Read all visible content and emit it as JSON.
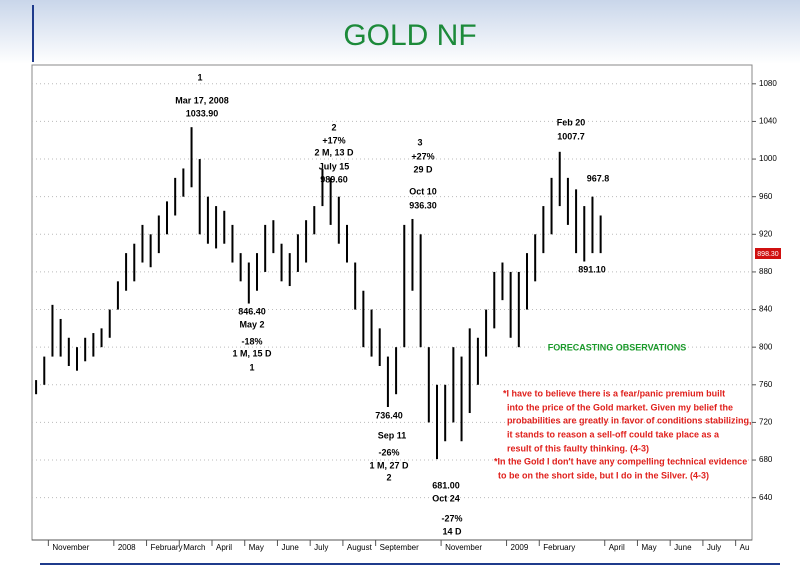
{
  "page_title": "GOLD NF",
  "chart_data": {
    "type": "range-bar",
    "color": "#000000",
    "categories": [
      null,
      null,
      "November",
      null,
      null,
      null,
      null,
      null,
      null,
      null,
      "2008",
      null,
      null,
      null,
      "February",
      null,
      null,
      null,
      "March",
      null,
      null,
      null,
      "April",
      null,
      null,
      null,
      "May",
      null,
      null,
      null,
      "June",
      null,
      null,
      null,
      "July",
      null,
      null,
      null,
      "August",
      null,
      null,
      null,
      "September",
      null,
      null,
      null,
      null,
      null,
      null,
      null,
      "November",
      null,
      null,
      null,
      null,
      null,
      null,
      null,
      "2009",
      null,
      null,
      null,
      "February",
      null,
      null,
      null,
      null,
      null,
      null,
      null,
      "April",
      null,
      null,
      null,
      "May",
      null,
      null,
      null,
      "June",
      null,
      null,
      null,
      "July",
      null,
      null,
      null,
      "Au",
      null
    ],
    "high": [
      765,
      790,
      845,
      830,
      810,
      800,
      810,
      815,
      820,
      840,
      870,
      900,
      910,
      930,
      920,
      940,
      955,
      980,
      990,
      1033.9,
      1000,
      960,
      950,
      945,
      930,
      900,
      890,
      900,
      930,
      935,
      910,
      900,
      920,
      935,
      950,
      989.6,
      980,
      960,
      930,
      890,
      860,
      840,
      820,
      790,
      800,
      930,
      936.3,
      920,
      800,
      760,
      760,
      800,
      790,
      820,
      810,
      840,
      880,
      890,
      880,
      880,
      900,
      920,
      950,
      980,
      1007.7,
      980,
      967.8,
      950,
      960,
      940,
      null,
      null,
      null,
      null,
      null,
      null,
      null,
      null,
      null,
      null,
      null,
      null,
      null,
      null,
      null,
      null,
      null,
      null
    ],
    "low": [
      750,
      760,
      790,
      790,
      780,
      775,
      785,
      790,
      800,
      810,
      840,
      860,
      870,
      890,
      885,
      900,
      920,
      940,
      960,
      970,
      920,
      910,
      905,
      910,
      890,
      870,
      846.4,
      860,
      880,
      900,
      870,
      865,
      880,
      890,
      920,
      950,
      930,
      910,
      890,
      840,
      800,
      790,
      780,
      736.4,
      750,
      800,
      860,
      800,
      720,
      681,
      700,
      720,
      700,
      730,
      760,
      790,
      820,
      850,
      810,
      800,
      840,
      870,
      900,
      920,
      950,
      930,
      900,
      891.1,
      900,
      900,
      null,
      null,
      null,
      null,
      null,
      null,
      null,
      null,
      null,
      null,
      null,
      null,
      null,
      null,
      null,
      null,
      null,
      null
    ],
    "ylim": [
      595,
      1100
    ],
    "yticks": [
      640,
      680,
      720,
      760,
      800,
      840,
      880,
      920,
      960,
      1000,
      1040,
      1080
    ],
    "grid": true,
    "last_price_label": "898.30",
    "annotations": [
      "1",
      "Mar 17, 2008",
      "1033.90",
      "2",
      "+17%",
      "2 M, 13 D",
      "July 15",
      "989.60",
      "3",
      "+27%",
      "29 D",
      "Oct 10",
      "936.30",
      "Feb 20",
      "1007.7",
      "967.8",
      "891.10",
      "846.40",
      "May 2",
      "-18%",
      "1 M, 15 D",
      "1",
      "736.40",
      "Sep 11",
      "-26%",
      "1 M, 27 D",
      "2",
      "681.00",
      "Oct 24",
      "-27%",
      "14 D"
    ],
    "notes_title": "FORECASTING OBSERVATIONS",
    "notes": [
      "*I have to believe there is a fear/panic premium built",
      "into the price of the Gold market.  Given my belief the",
      "probabilities are greatly in favor of conditions stabilizing,",
      "it stands to reason a sell-off could take place as a",
      "result of this faulty thinking.  (4-3)",
      "*In the Gold I don't have any compelling technical evidence",
      "to be on the short side, but I do in the Silver. (4-3)"
    ]
  }
}
